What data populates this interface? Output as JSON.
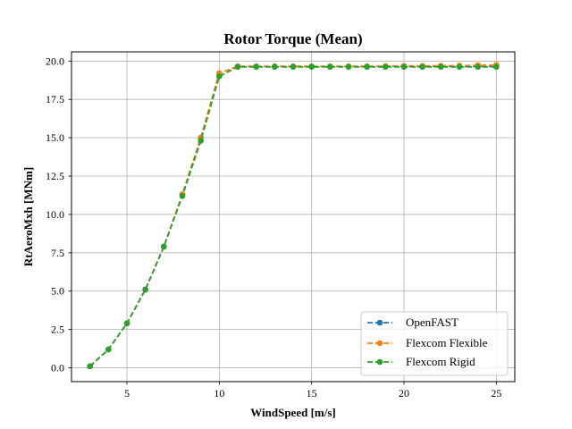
{
  "chart_data": {
    "type": "line",
    "title": "Rotor Torque (Mean)",
    "xlabel": "WindSpeed [m/s]",
    "ylabel": "RtAeroMxh [MNm]",
    "xlim": [
      2.0,
      26.0
    ],
    "ylim": [
      -0.9,
      20.6
    ],
    "xticks": [
      5,
      10,
      15,
      20,
      25
    ],
    "xtick_labels": [
      "5",
      "10",
      "15",
      "20",
      "25"
    ],
    "yticks": [
      0.0,
      2.5,
      5.0,
      7.5,
      10.0,
      12.5,
      15.0,
      17.5,
      20.0
    ],
    "ytick_labels": [
      "0.0",
      "2.5",
      "5.0",
      "7.5",
      "10.0",
      "12.5",
      "15.0",
      "17.5",
      "20.0"
    ],
    "grid": true,
    "legend_position": "bottom-right",
    "x": [
      3,
      4,
      5,
      6,
      7,
      8,
      9,
      10,
      11,
      12,
      13,
      14,
      15,
      16,
      17,
      18,
      19,
      20,
      21,
      22,
      23,
      24,
      25
    ],
    "series": [
      {
        "name": "OpenFAST",
        "color": "#1f77b4",
        "values": [
          0.1,
          1.2,
          2.9,
          5.1,
          7.9,
          11.3,
          15.0,
          19.2,
          19.65,
          19.65,
          19.65,
          19.65,
          19.65,
          19.65,
          19.65,
          19.65,
          19.65,
          19.65,
          19.65,
          19.65,
          19.65,
          19.65,
          19.65
        ]
      },
      {
        "name": "Flexcom Flexible",
        "color": "#ff7f0e",
        "values": [
          0.1,
          1.2,
          2.9,
          5.1,
          7.9,
          11.3,
          15.0,
          19.2,
          19.65,
          19.65,
          19.65,
          19.65,
          19.65,
          19.65,
          19.65,
          19.65,
          19.67,
          19.68,
          19.68,
          19.69,
          19.7,
          19.72,
          19.74
        ]
      },
      {
        "name": "Flexcom Rigid",
        "color": "#2ca02c",
        "values": [
          0.1,
          1.2,
          2.9,
          5.1,
          7.9,
          11.2,
          14.8,
          19.0,
          19.62,
          19.62,
          19.62,
          19.62,
          19.62,
          19.62,
          19.62,
          19.62,
          19.62,
          19.62,
          19.62,
          19.62,
          19.62,
          19.62,
          19.62
        ]
      }
    ]
  }
}
